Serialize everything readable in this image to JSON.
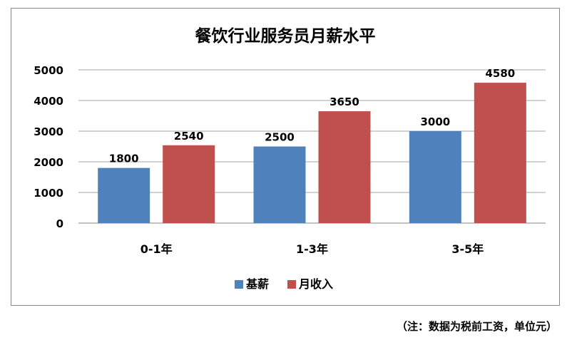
{
  "chart_data": {
    "type": "bar",
    "title": "餐饮行业服务员月薪水平",
    "categories": [
      "0-1年",
      "1-3年",
      "3-5年"
    ],
    "series": [
      {
        "name": "基薪",
        "values": [
          1800,
          2500,
          3000
        ],
        "color": "#4F81BD"
      },
      {
        "name": "月收入",
        "values": [
          2540,
          3650,
          4580
        ],
        "color": "#C0504D"
      }
    ],
    "ylim": [
      0,
      5000
    ],
    "yticks": [
      0,
      1000,
      2000,
      3000,
      4000,
      5000
    ],
    "grid": true,
    "legend": "bottom",
    "data_labels": true
  },
  "footnote": "（注：数据为税前工资，单位元）"
}
